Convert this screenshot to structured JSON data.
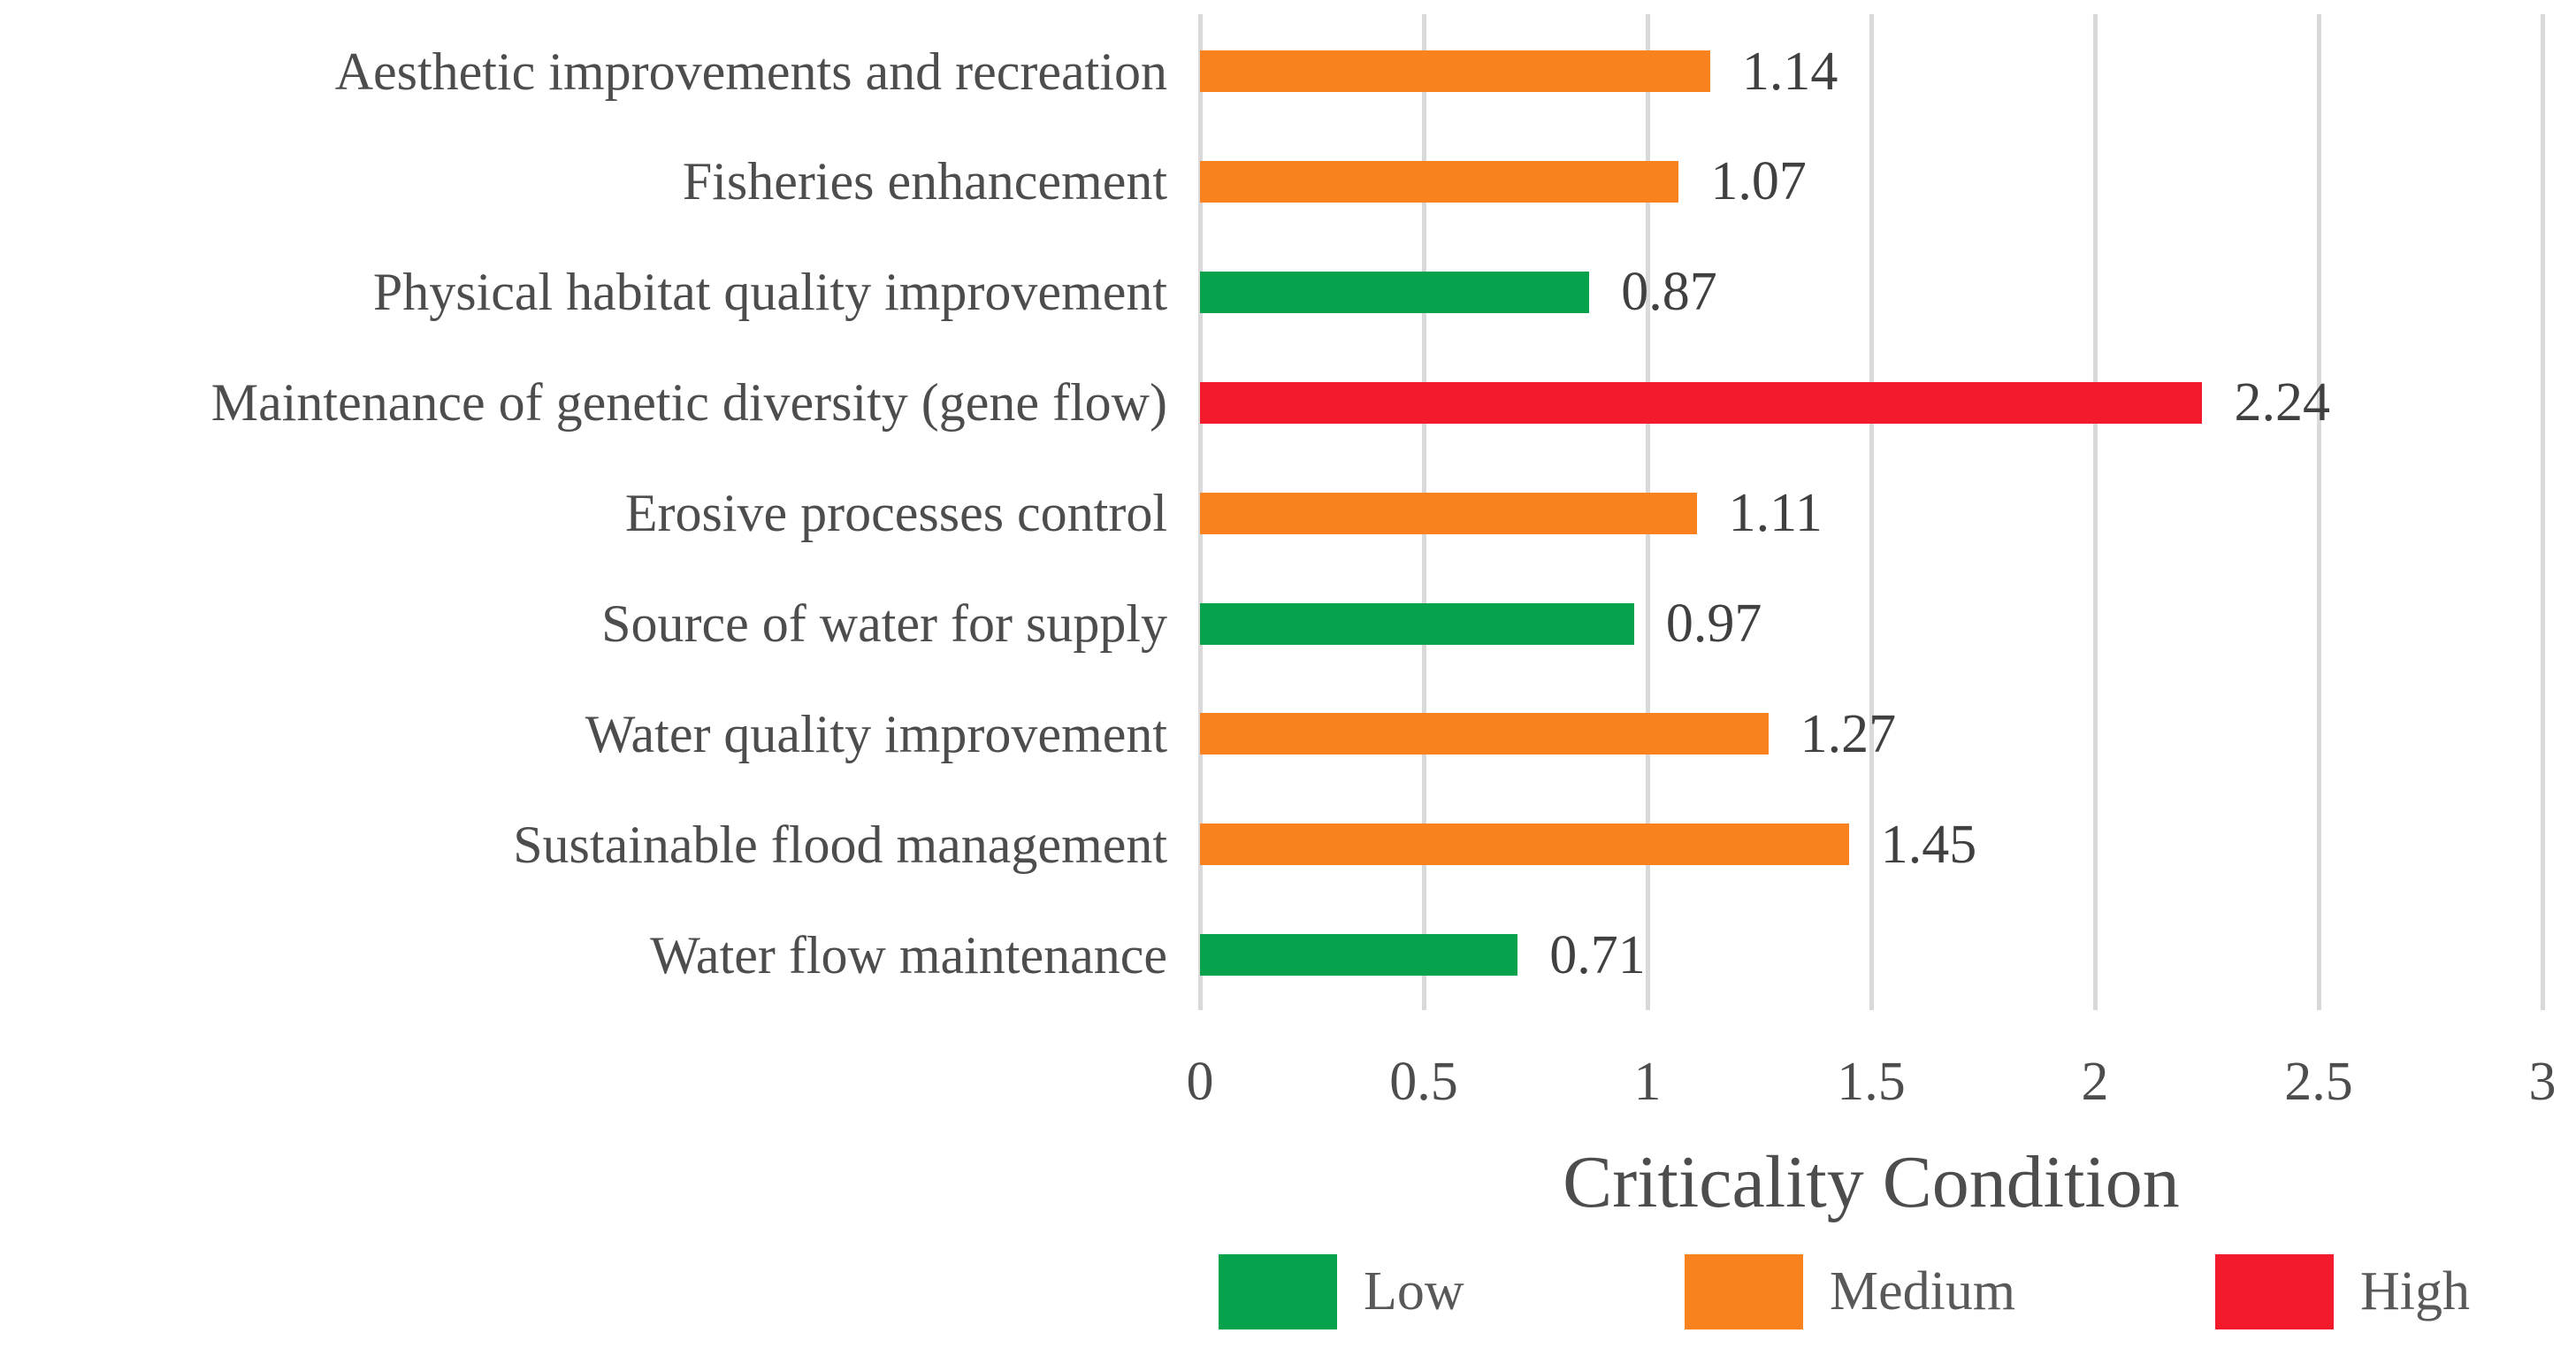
{
  "chart_data": {
    "type": "bar",
    "orientation": "horizontal",
    "title": "",
    "xlabel": "Criticality Condition",
    "ylabel": "",
    "xlim": [
      0,
      3
    ],
    "xtick_labels": [
      "0",
      "0.5",
      "1",
      "1.5",
      "2",
      "2.5",
      "3"
    ],
    "xtick_values": [
      0,
      0.5,
      1,
      1.5,
      2,
      2.5,
      3
    ],
    "grid": true,
    "legend_position": "bottom",
    "categories": [
      "Aesthetic improvements and recreation",
      "Fisheries enhancement",
      "Physical habitat quality improvement",
      "Maintenance of genetic diversity (gene flow)",
      "Erosive processes control",
      "Source of water for supply",
      "Water quality improvement",
      "Sustainable flood management",
      "Water flow maintenance"
    ],
    "values": [
      1.14,
      1.07,
      0.87,
      2.24,
      1.11,
      0.97,
      1.27,
      1.45,
      0.71
    ],
    "value_labels": [
      "1.14",
      "1.07",
      "0.87",
      "2.24",
      "1.11",
      "0.97",
      "1.27",
      "1.45",
      "0.71"
    ],
    "levels": [
      "medium",
      "medium",
      "low",
      "high",
      "medium",
      "low",
      "medium",
      "medium",
      "low"
    ],
    "level_colors": {
      "low": "#07A24C",
      "medium": "#F9821E",
      "high": "#F31B2B"
    },
    "legend": [
      {
        "label": "Low",
        "level": "low"
      },
      {
        "label": "Medium",
        "level": "medium"
      },
      {
        "label": "High",
        "level": "high"
      }
    ]
  },
  "colors": {
    "background": "#FFFFFF",
    "gridline": "#D9D9D9",
    "category_text": "#4D4D4D",
    "value_text": "#404040",
    "tick_text": "#4D4D4D",
    "axis_title_text": "#4D4D4D",
    "legend_text": "#595959"
  }
}
